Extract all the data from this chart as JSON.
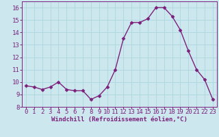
{
  "x": [
    0,
    1,
    2,
    3,
    4,
    5,
    6,
    7,
    8,
    9,
    10,
    11,
    12,
    13,
    14,
    15,
    16,
    17,
    18,
    19,
    20,
    21,
    22,
    23
  ],
  "y": [
    9.7,
    9.6,
    9.4,
    9.6,
    10.0,
    9.4,
    9.3,
    9.3,
    8.6,
    8.9,
    9.6,
    11.0,
    13.5,
    14.8,
    14.8,
    15.1,
    16.0,
    16.0,
    15.3,
    14.2,
    12.5,
    11.0,
    10.2,
    8.6
  ],
  "line_color": "#7B1F7B",
  "marker": "D",
  "marker_size": 2.5,
  "xlabel": "Windchill (Refroidissement éolien,°C)",
  "xlim": [
    -0.5,
    23.5
  ],
  "ylim": [
    8,
    16.5
  ],
  "yticks": [
    8,
    9,
    10,
    11,
    12,
    13,
    14,
    15,
    16
  ],
  "xticks": [
    0,
    1,
    2,
    3,
    4,
    5,
    6,
    7,
    8,
    9,
    10,
    11,
    12,
    13,
    14,
    15,
    16,
    17,
    18,
    19,
    20,
    21,
    22,
    23
  ],
  "background_color": "#cce8ee",
  "grid_color": "#b0d8e0",
  "tick_label_color": "#7B1F7B",
  "xlabel_fontsize": 6.5,
  "tick_fontsize": 6.5,
  "linewidth": 1.0
}
